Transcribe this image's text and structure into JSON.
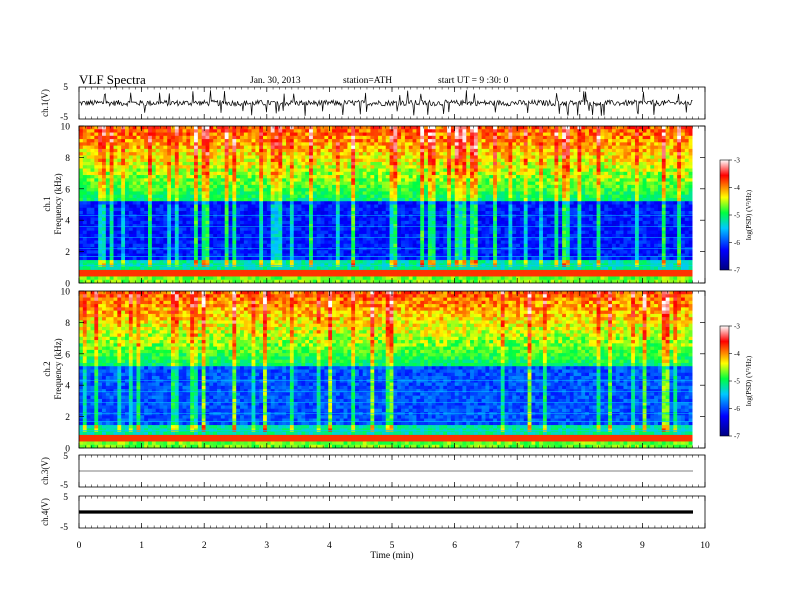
{
  "header": {
    "title": "VLF  Spectra",
    "date": "Jan. 30, 2013",
    "station": "station=ATH",
    "start": "start  UT  =   9  :30: 0"
  },
  "chart_data": [
    {
      "id": "ch1-waveform",
      "type": "line",
      "ylabel": "ch.1(V)",
      "ylim": [
        -5,
        5
      ],
      "yticks": [
        5,
        -5
      ],
      "xlim": [
        0,
        10
      ],
      "data_end_min": 9.8,
      "baseline": 0,
      "noise_amplitude": 1.5,
      "spike_amplitude": 4
    },
    {
      "id": "ch1-spectrogram",
      "type": "heatmap",
      "ylabel": "ch.1\nFrequency  (kHz)",
      "ylim": [
        0,
        10
      ],
      "yticks": [
        0,
        2,
        4,
        6,
        8,
        10
      ],
      "xlim": [
        0,
        10
      ],
      "data_end_min": 9.8,
      "colorbar": {
        "label": "log(PSD) (V²/Hz)",
        "range": [
          -7,
          -3
        ],
        "ticks": [
          "-3",
          "-4",
          "-5",
          "-6",
          "-7"
        ]
      }
    },
    {
      "id": "ch2-spectrogram",
      "type": "heatmap",
      "ylabel": "ch.2\nFrequency  (kHz)",
      "ylim": [
        0,
        10
      ],
      "yticks": [
        0,
        2,
        4,
        6,
        8,
        10
      ],
      "xlim": [
        0,
        10
      ],
      "data_end_min": 9.8,
      "colorbar": {
        "label": "log(PSD) (V²/Hz)",
        "range": [
          -7,
          -3
        ],
        "ticks": [
          "-3",
          "-4",
          "-5",
          "-6",
          "-7"
        ]
      }
    },
    {
      "id": "ch3-waveform",
      "type": "line",
      "ylabel": "ch.3(V)",
      "ylim": [
        -5,
        5
      ],
      "yticks": [
        5,
        -5
      ],
      "xlim": [
        0,
        10
      ],
      "data_end_min": 9.8,
      "baseline": 0
    },
    {
      "id": "ch4-waveform",
      "type": "line",
      "ylabel": "ch.4(V)",
      "ylim": [
        -5,
        5
      ],
      "yticks": [
        5,
        -5
      ],
      "xlim": [
        0,
        10
      ],
      "data_end_min": 9.8,
      "baseline": 0
    }
  ],
  "xaxis": {
    "label": "Time  (min)",
    "ticks": [
      "0",
      "1",
      "2",
      "3",
      "4",
      "5",
      "6",
      "7",
      "8",
      "9",
      "10"
    ]
  },
  "colors": {
    "waveform": "#000000",
    "colormap": [
      "#000070",
      "#0000ff",
      "#00ffff",
      "#00ff00",
      "#ffff00",
      "#ff7f00",
      "#ff0000",
      "#ffffff"
    ]
  }
}
